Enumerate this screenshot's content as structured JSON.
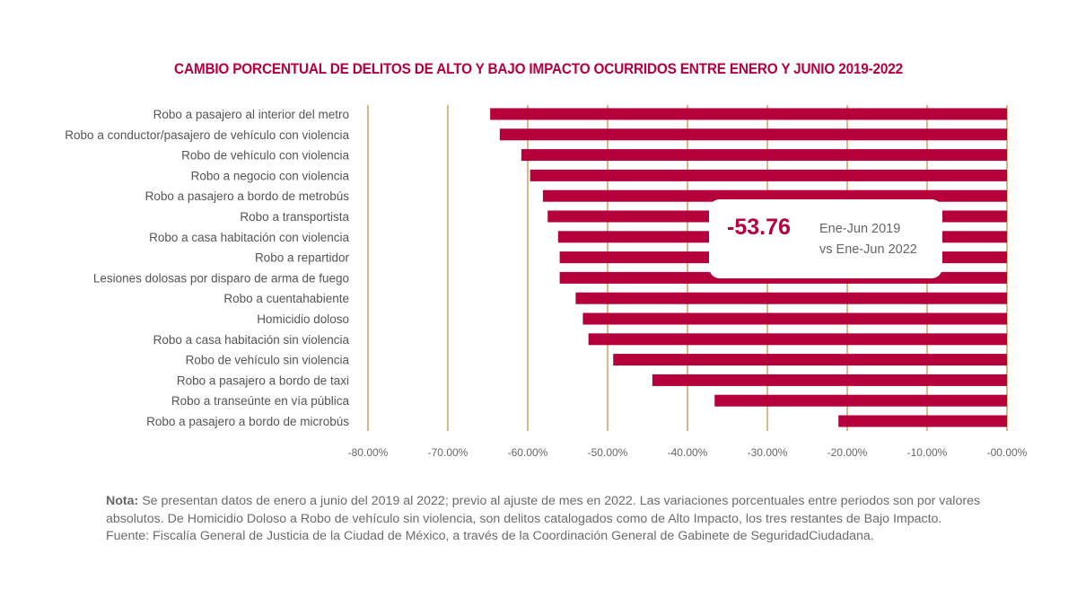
{
  "chart_data": {
    "type": "bar",
    "orientation": "horizontal",
    "title": "CAMBIO PORCENTUAL DE DELITOS DE ALTO Y BAJO IMPACTO OCURRIDOS ENTRE ENERO Y JUNIO 2019-2022",
    "xlabel": "",
    "ylabel": "",
    "xlim": [
      -80,
      0
    ],
    "grid": true,
    "x_ticks": [
      -80,
      -70,
      -60,
      -50,
      -40,
      -30,
      -20,
      -10,
      0
    ],
    "x_tick_labels": [
      "-80.00%",
      "-70.00%",
      "-60.00%",
      "-50.00%",
      "-40.00%",
      "-30.00%",
      "-20.00%",
      "-10.00%",
      "-00.00%"
    ],
    "categories": [
      "Robo a pasajero al interior del metro",
      "Robo a conductor/pasajero de vehículo con violencia",
      "Robo de vehículo con violencia",
      "Robo a negocio con violencia",
      "Robo a pasajero a bordo de metrobús",
      "Robo a transportista",
      "Robo a casa habitación con violencia",
      "Robo a repartidor",
      "Lesiones dolosas por disparo de arma de fuego",
      "Robo a cuentahabiente",
      "Homicidio doloso",
      "Robo a casa habitación sin violencia",
      "Robo de vehículo sin violencia",
      "Robo a pasajero a bordo de taxi",
      "Robo a transeúnte en vía pública",
      "Robo a pasajero a bordo de microbús"
    ],
    "values": [
      -64.7,
      -63.5,
      -60.8,
      -59.7,
      -58.1,
      -57.5,
      -56.2,
      -56.0,
      -56.0,
      -54.0,
      -53.1,
      -52.4,
      -49.3,
      -44.4,
      -36.6,
      -21.1
    ],
    "units": "%",
    "bar_color": "#b5003b",
    "grid_color": "#d9b98a",
    "annotation": {
      "value": "-53.76",
      "line1": "Ene-Jun 2019",
      "line2": "vs Ene-Jun 2022"
    }
  },
  "note": {
    "label": "Nota:",
    "text": " Se presentan datos de enero a junio del 2019 al 2022; previo al ajuste de mes en 2022. Las variaciones porcentuales entre periodos son por valores absolutos. De Homicidio Doloso a Robo de vehículo sin violencia, son delitos catalogados como de Alto Impacto, los tres restantes de  Bajo Impacto.",
    "source": "Fuente: Fiscalía General de Justicia de la Ciudad de México, a través de la Coordinación General     de Gabinete de SeguridadCiudadana."
  }
}
